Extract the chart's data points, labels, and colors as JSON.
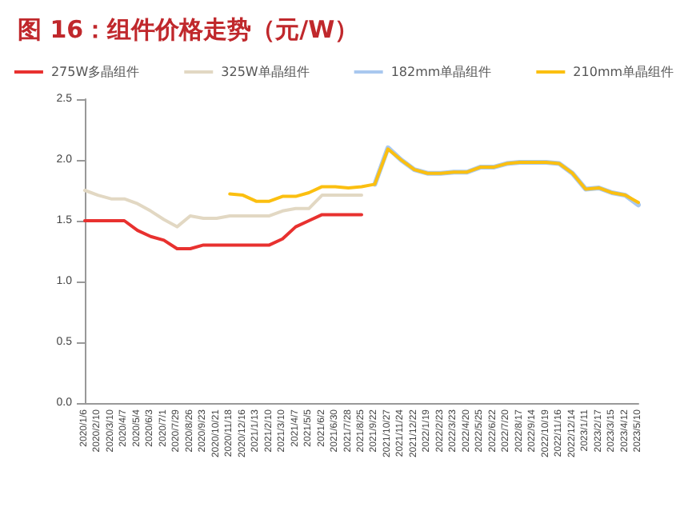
{
  "chart_data": {
    "type": "line",
    "title": "图 16：组件价格走势（元/W）",
    "categories": [
      "2020/1/6",
      "2020/2/10",
      "2020/3/10",
      "2020/4/7",
      "2020/5/4",
      "2020/6/3",
      "2020/7/1",
      "2020/7/29",
      "2020/8/26",
      "2020/9/23",
      "2020/10/21",
      "2020/11/18",
      "2020/12/16",
      "2021/1/13",
      "2021/2/10",
      "2021/3/10",
      "2021/4/7",
      "2021/5/5",
      "2021/6/2",
      "2021/6/30",
      "2021/7/28",
      "2021/8/25",
      "2021/9/22",
      "2021/10/27",
      "2021/11/24",
      "2021/12/22",
      "2022/1/19",
      "2022/2/23",
      "2022/3/23",
      "2022/4/20",
      "2022/5/25",
      "2022/6/22",
      "2022/7/20",
      "2022/8/17",
      "2022/9/14",
      "2022/10/19",
      "2022/11/16",
      "2022/12/14",
      "2023/1/11",
      "2023/2/17",
      "2023/3/15",
      "2023/4/12",
      "2023/5/10"
    ],
    "series": [
      {
        "name": "275W多晶组件",
        "color": "#e8312f",
        "values": [
          1.5,
          1.5,
          1.5,
          1.5,
          1.42,
          1.37,
          1.34,
          1.27,
          1.27,
          1.3,
          1.3,
          1.3,
          1.3,
          1.3,
          1.3,
          1.35,
          1.45,
          1.5,
          1.55,
          1.55,
          1.55,
          1.55,
          null,
          null,
          null,
          null,
          null,
          null,
          null,
          null,
          null,
          null,
          null,
          null,
          null,
          null,
          null,
          null,
          null,
          null,
          null,
          null,
          null
        ]
      },
      {
        "name": "325W单晶组件",
        "color": "#e2d8c3",
        "values": [
          1.75,
          1.71,
          1.68,
          1.68,
          1.64,
          1.58,
          1.51,
          1.45,
          1.54,
          1.52,
          1.52,
          1.54,
          1.54,
          1.54,
          1.54,
          1.58,
          1.6,
          1.6,
          1.71,
          1.71,
          1.71,
          1.71,
          null,
          null,
          null,
          null,
          null,
          null,
          null,
          null,
          null,
          null,
          null,
          null,
          null,
          null,
          null,
          null,
          null,
          null,
          null,
          null,
          null
        ]
      },
      {
        "name": "182mm单晶组件",
        "color": "#a9c8ef",
        "values": [
          null,
          null,
          null,
          null,
          null,
          null,
          null,
          null,
          null,
          null,
          null,
          null,
          null,
          null,
          null,
          null,
          null,
          null,
          null,
          null,
          null,
          null,
          1.8,
          2.1,
          2.0,
          1.92,
          1.89,
          1.89,
          1.9,
          1.9,
          1.94,
          1.94,
          1.97,
          1.98,
          1.98,
          1.98,
          1.97,
          1.89,
          1.76,
          1.77,
          1.73,
          1.71,
          1.63
        ]
      },
      {
        "name": "210mm单晶组件",
        "color": "#fbbf10",
        "values": [
          null,
          null,
          null,
          null,
          null,
          null,
          null,
          null,
          null,
          null,
          null,
          1.72,
          1.71,
          1.66,
          1.66,
          1.7,
          1.7,
          1.73,
          1.78,
          1.78,
          1.77,
          1.78,
          1.8,
          2.09,
          2.0,
          1.92,
          1.89,
          1.89,
          1.9,
          1.9,
          1.94,
          1.94,
          1.97,
          1.98,
          1.98,
          1.98,
          1.97,
          1.89,
          1.76,
          1.77,
          1.73,
          1.71,
          1.65
        ]
      }
    ],
    "ylim": [
      0,
      2.5
    ],
    "yticks": [
      {
        "value": 0,
        "label": "0.0"
      },
      {
        "value": 0.5,
        "label": "0.5"
      },
      {
        "value": 1,
        "label": "1.0"
      },
      {
        "value": 1.5,
        "label": "1.5"
      },
      {
        "value": 2,
        "label": "2.0"
      },
      {
        "value": 2.5,
        "label": "2.5"
      }
    ],
    "grid": false,
    "legend": "top",
    "marker": "none",
    "line_style": "solid"
  }
}
